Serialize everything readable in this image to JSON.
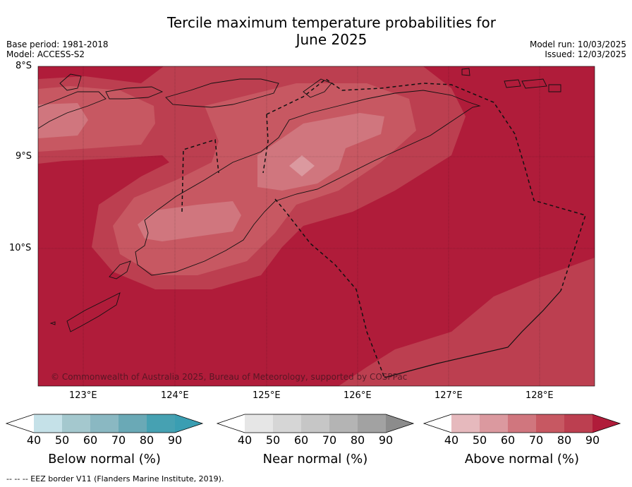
{
  "title": "Tercile maximum temperature probabilities for\nJune 2025",
  "meta_left": {
    "base_period": "Base period: 1981-2018",
    "model": "Model: ACCESS-S2"
  },
  "meta_right": {
    "model_run": "Model run: 10/03/2025",
    "issued": "Issued: 12/03/2025"
  },
  "map": {
    "lat_labels": [
      "8°S",
      "9°S",
      "10°S"
    ],
    "lon_labels": [
      "123°E",
      "124°E",
      "125°E",
      "126°E",
      "127°E",
      "128°E"
    ],
    "copyright": "© Commonwealth of Australia 2025, Bureau of Meteorology, supported by COSPPac",
    "colors": {
      "above_90": "#b01c3a",
      "above_80": "#bc3f50",
      "above_70": "#c75862",
      "above_60": "#d0767e",
      "above_50": "#db999f",
      "above_40": "#e6b9bd"
    }
  },
  "colorbars": [
    {
      "title": "Below normal (%)",
      "ticks": [
        "40",
        "50",
        "60",
        "70",
        "80",
        "90"
      ],
      "colors": [
        "#ffffff",
        "#c5e1e8",
        "#a4c8ce",
        "#8ab8c2",
        "#6aa9b6",
        "#46a1b2",
        "#3a9eb2"
      ]
    },
    {
      "title": "Near normal (%)",
      "ticks": [
        "40",
        "50",
        "60",
        "70",
        "80",
        "90"
      ],
      "colors": [
        "#ffffff",
        "#e6e6e6",
        "#d6d6d6",
        "#c6c6c6",
        "#b4b4b4",
        "#a2a2a2",
        "#8c8c8c"
      ]
    },
    {
      "title": "Above normal (%)",
      "ticks": [
        "40",
        "50",
        "60",
        "70",
        "80",
        "90"
      ],
      "colors": [
        "#ffffff",
        "#e6b9bd",
        "#db999f",
        "#d0767e",
        "#c75862",
        "#bc3f50",
        "#b01c3a"
      ]
    }
  ],
  "eez_note": "--  --  -- EEZ border V11 (Flanders Marine Institute, 2019)."
}
